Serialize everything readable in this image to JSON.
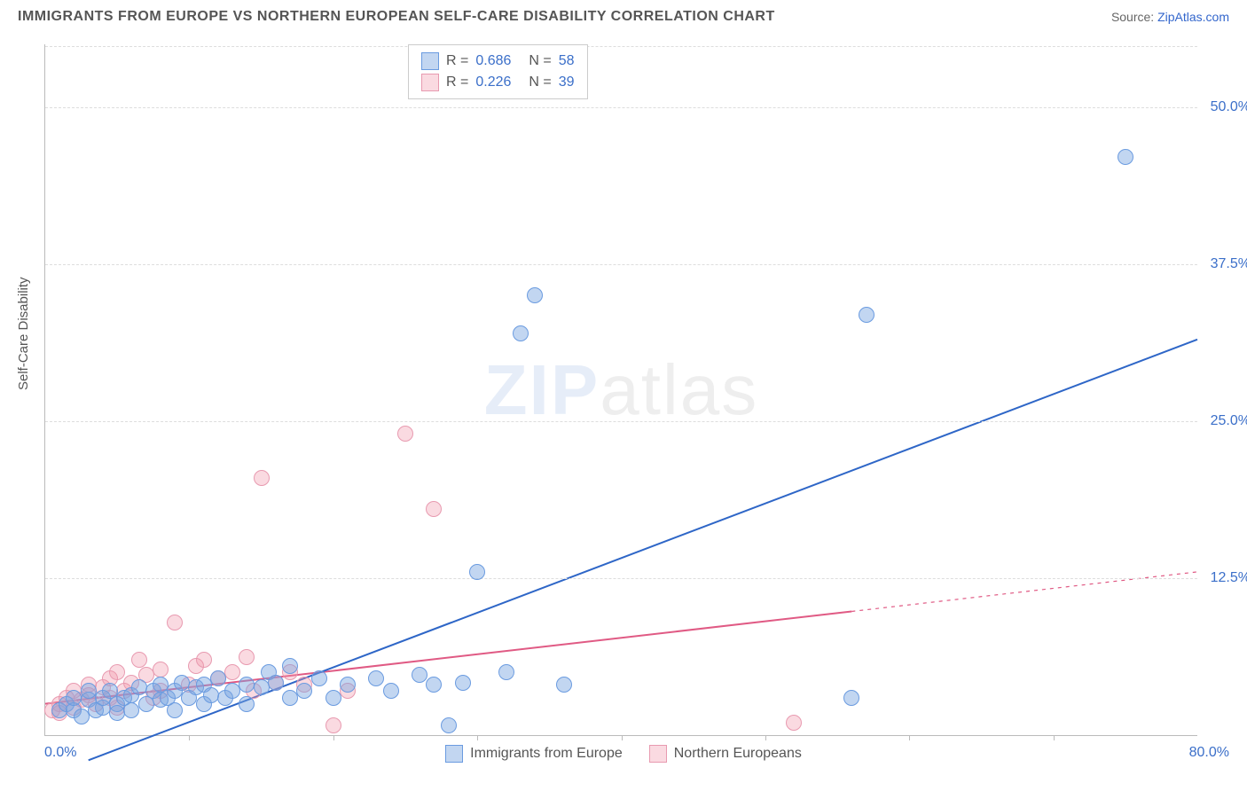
{
  "header": {
    "title": "IMMIGRANTS FROM EUROPE VS NORTHERN EUROPEAN SELF-CARE DISABILITY CORRELATION CHART",
    "source_prefix": "Source: ",
    "source_link": "ZipAtlas.com"
  },
  "axes": {
    "y_label": "Self-Care Disability",
    "x_min": 0,
    "x_max": 80,
    "x_min_label": "0.0%",
    "x_max_label": "80.0%",
    "y_min": 0,
    "y_max": 55,
    "y_ticks": [
      {
        "v": 12.5,
        "label": "12.5%"
      },
      {
        "v": 25.0,
        "label": "25.0%"
      },
      {
        "v": 37.5,
        "label": "37.5%"
      },
      {
        "v": 50.0,
        "label": "50.0%"
      }
    ],
    "x_tick_step": 10
  },
  "watermark": {
    "zip": "ZIP",
    "atlas": "atlas"
  },
  "styles": {
    "point_radius": 9,
    "blue_fill": "rgba(120,165,225,0.45)",
    "blue_stroke": "#6a9be0",
    "pink_fill": "rgba(240,150,170,0.35)",
    "pink_stroke": "#e89ab0",
    "blue_line": "#2e66c7",
    "pink_line": "#e05a84",
    "pink_dash": "4,5",
    "line_width": 2
  },
  "legend_stats": {
    "series": [
      {
        "color_fill": "rgba(120,165,225,0.45)",
        "color_stroke": "#6a9be0",
        "r_label": "R =",
        "r": "0.686",
        "n_label": "N =",
        "n": "58"
      },
      {
        "color_fill": "rgba(240,150,170,0.35)",
        "color_stroke": "#e89ab0",
        "r_label": "R =",
        "r": "0.226",
        "n_label": "N =",
        "n": "39"
      }
    ]
  },
  "bottom_legend": [
    {
      "label": "Immigrants from Europe",
      "fill": "rgba(120,165,225,0.45)",
      "stroke": "#6a9be0"
    },
    {
      "label": "Northern Europeans",
      "fill": "rgba(240,150,170,0.35)",
      "stroke": "#e89ab0"
    }
  ],
  "trend_lines": {
    "blue": {
      "x1": 3,
      "y1": -2,
      "x2": 80,
      "y2": 31.5,
      "solid_until_x": 80
    },
    "pink": {
      "x1": 0,
      "y1": 2.5,
      "x2": 80,
      "y2": 13.0,
      "solid_until_x": 56
    }
  },
  "series": {
    "blue": [
      [
        1,
        2
      ],
      [
        1.5,
        2.5
      ],
      [
        2,
        2
      ],
      [
        2,
        3
      ],
      [
        2.5,
        1.5
      ],
      [
        3,
        2.8
      ],
      [
        3,
        3.5
      ],
      [
        3.5,
        2
      ],
      [
        4,
        2.2
      ],
      [
        4,
        3
      ],
      [
        4.5,
        3.5
      ],
      [
        5,
        2.5
      ],
      [
        5,
        1.8
      ],
      [
        5.5,
        3
      ],
      [
        6,
        3.2
      ],
      [
        6,
        2
      ],
      [
        6.5,
        3.8
      ],
      [
        7,
        2.5
      ],
      [
        7.5,
        3.5
      ],
      [
        8,
        4
      ],
      [
        8,
        2.8
      ],
      [
        8.5,
        3
      ],
      [
        9,
        3.5
      ],
      [
        9,
        2
      ],
      [
        9.5,
        4.2
      ],
      [
        10,
        3
      ],
      [
        10.5,
        3.8
      ],
      [
        11,
        2.5
      ],
      [
        11,
        4
      ],
      [
        11.5,
        3.2
      ],
      [
        12,
        4.5
      ],
      [
        12.5,
        3
      ],
      [
        13,
        3.5
      ],
      [
        14,
        4
      ],
      [
        14,
        2.5
      ],
      [
        15,
        3.8
      ],
      [
        15.5,
        5
      ],
      [
        16,
        4.2
      ],
      [
        17,
        3
      ],
      [
        17,
        5.5
      ],
      [
        18,
        3.5
      ],
      [
        19,
        4.5
      ],
      [
        20,
        3
      ],
      [
        21,
        4
      ],
      [
        23,
        4.5
      ],
      [
        24,
        3.5
      ],
      [
        26,
        4.8
      ],
      [
        27,
        4
      ],
      [
        28,
        0.8
      ],
      [
        29,
        4.2
      ],
      [
        30,
        13
      ],
      [
        32,
        5
      ],
      [
        34,
        35
      ],
      [
        33,
        32
      ],
      [
        36,
        4
      ],
      [
        56,
        3
      ],
      [
        57,
        33.5
      ],
      [
        75,
        46
      ]
    ],
    "pink": [
      [
        0.5,
        2
      ],
      [
        1,
        1.8
      ],
      [
        1,
        2.5
      ],
      [
        1.5,
        3
      ],
      [
        2,
        2.2
      ],
      [
        2,
        3.5
      ],
      [
        2.5,
        2.8
      ],
      [
        3,
        3.2
      ],
      [
        3,
        4
      ],
      [
        3.5,
        2.5
      ],
      [
        4,
        3.8
      ],
      [
        4.5,
        4.5
      ],
      [
        4.5,
        3
      ],
      [
        5,
        2.2
      ],
      [
        5,
        5
      ],
      [
        5.5,
        3.5
      ],
      [
        6,
        4.2
      ],
      [
        6.5,
        6
      ],
      [
        7,
        4.8
      ],
      [
        7.5,
        3
      ],
      [
        8,
        5.2
      ],
      [
        8,
        3.5
      ],
      [
        9,
        9
      ],
      [
        10,
        4
      ],
      [
        10.5,
        5.5
      ],
      [
        11,
        6
      ],
      [
        12,
        4.5
      ],
      [
        13,
        5
      ],
      [
        14,
        6.2
      ],
      [
        14.5,
        3.5
      ],
      [
        15,
        20.5
      ],
      [
        16,
        4.2
      ],
      [
        17,
        5
      ],
      [
        18,
        4
      ],
      [
        20,
        0.8
      ],
      [
        21,
        3.5
      ],
      [
        25,
        24
      ],
      [
        27,
        18
      ],
      [
        52,
        1
      ]
    ]
  }
}
